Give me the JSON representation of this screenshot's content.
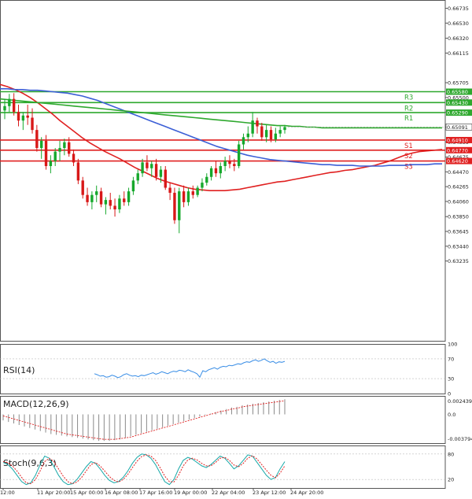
{
  "chart_data": [
    {
      "type": "candlestick",
      "panel": "price",
      "title": "",
      "ylim": [
        0.6213,
        0.6685
      ],
      "y_ticks": [
        "0.66735",
        "0.66530",
        "0.66320",
        "0.66115",
        "0.65705",
        "0.65500",
        "0.65295",
        "0.65090",
        "0.64885",
        "0.64675",
        "0.64470",
        "0.64265",
        "0.64060",
        "0.63850",
        "0.63645",
        "0.63440",
        "0.63235"
      ],
      "x_tick_labels": [
        "12:00",
        "11 Apr 20:00",
        "15 Apr 00:00",
        "16 Apr 08:00",
        "17 Apr 16:00",
        "19 Apr 00:00",
        "22 Apr 04:00",
        "23 Apr 12:00",
        "24 Apr 20:00"
      ],
      "current_price": "0.65091",
      "levels": [
        {
          "name": "R3",
          "value": 0.6558,
          "label": "0.65580",
          "color": "#2ea82e"
        },
        {
          "name": "R2",
          "value": 0.6543,
          "label": "0.65430",
          "color": "#2ea82e"
        },
        {
          "name": "R1",
          "value": 0.6529,
          "label": "0.65290",
          "color": "#2ea82e"
        },
        {
          "name": "S1",
          "value": 0.6491,
          "label": "0.64910",
          "color": "#e02020"
        },
        {
          "name": "S2",
          "value": 0.6477,
          "label": "0.64770",
          "color": "#e02020"
        },
        {
          "name": "S3",
          "value": 0.6462,
          "label": "0.64620",
          "color": "#e02020"
        }
      ],
      "candles": [
        [
          0.6532,
          0.6548,
          0.652,
          0.6538
        ],
        [
          0.6538,
          0.6555,
          0.653,
          0.6548
        ],
        [
          0.6548,
          0.6556,
          0.6525,
          0.653
        ],
        [
          0.653,
          0.654,
          0.651,
          0.6518
        ],
        [
          0.6518,
          0.653,
          0.6505,
          0.6525
        ],
        [
          0.6525,
          0.654,
          0.6512,
          0.6522
        ],
        [
          0.6522,
          0.6535,
          0.65,
          0.6505
        ],
        [
          0.6505,
          0.6512,
          0.6475,
          0.648
        ],
        [
          0.648,
          0.6495,
          0.6465,
          0.649
        ],
        [
          0.649,
          0.6498,
          0.645,
          0.6455
        ],
        [
          0.6455,
          0.647,
          0.6445,
          0.6462
        ],
        [
          0.6462,
          0.648,
          0.6455,
          0.6475
        ],
        [
          0.6475,
          0.649,
          0.6462,
          0.648
        ],
        [
          0.648,
          0.6493,
          0.647,
          0.6488
        ],
        [
          0.6488,
          0.6495,
          0.6468,
          0.6472
        ],
        [
          0.6472,
          0.6478,
          0.6455,
          0.646
        ],
        [
          0.646,
          0.6465,
          0.643,
          0.6435
        ],
        [
          0.6435,
          0.644,
          0.641,
          0.6415
        ],
        [
          0.6415,
          0.6425,
          0.64,
          0.6405
        ],
        [
          0.6405,
          0.642,
          0.6395,
          0.6415
        ],
        [
          0.6415,
          0.6428,
          0.6405,
          0.642
        ],
        [
          0.642,
          0.6425,
          0.6398,
          0.6402
        ],
        [
          0.6402,
          0.6412,
          0.6388,
          0.6408
        ],
        [
          0.6408,
          0.6418,
          0.6395,
          0.64
        ],
        [
          0.64,
          0.641,
          0.6385,
          0.6395
        ],
        [
          0.6395,
          0.6415,
          0.639,
          0.641
        ],
        [
          0.641,
          0.642,
          0.64,
          0.6405
        ],
        [
          0.6405,
          0.6425,
          0.64,
          0.642
        ],
        [
          0.642,
          0.644,
          0.6415,
          0.6435
        ],
        [
          0.6435,
          0.645,
          0.643,
          0.6445
        ],
        [
          0.6445,
          0.6465,
          0.644,
          0.646
        ],
        [
          0.646,
          0.647,
          0.6448,
          0.6452
        ],
        [
          0.6452,
          0.6462,
          0.644,
          0.6458
        ],
        [
          0.6458,
          0.6465,
          0.6435,
          0.644
        ],
        [
          0.644,
          0.6455,
          0.6432,
          0.645
        ],
        [
          0.645,
          0.6455,
          0.6422,
          0.6425
        ],
        [
          0.6425,
          0.6432,
          0.6408,
          0.6418
        ],
        [
          0.6418,
          0.6425,
          0.6375,
          0.638
        ],
        [
          0.638,
          0.6425,
          0.6362,
          0.642
        ],
        [
          0.642,
          0.6428,
          0.6398,
          0.6405
        ],
        [
          0.6405,
          0.6425,
          0.64,
          0.642
        ],
        [
          0.642,
          0.6428,
          0.641,
          0.6415
        ],
        [
          0.6415,
          0.6428,
          0.6412,
          0.6425
        ],
        [
          0.6425,
          0.6438,
          0.642,
          0.6432
        ],
        [
          0.6432,
          0.6445,
          0.6428,
          0.644
        ],
        [
          0.644,
          0.6455,
          0.6435,
          0.6452
        ],
        [
          0.6452,
          0.6462,
          0.644,
          0.6445
        ],
        [
          0.6445,
          0.646,
          0.6438,
          0.6455
        ],
        [
          0.6455,
          0.6468,
          0.6448,
          0.6462
        ],
        [
          0.6462,
          0.647,
          0.6452,
          0.6458
        ],
        [
          0.6458,
          0.6465,
          0.6448,
          0.6455
        ],
        [
          0.6455,
          0.649,
          0.6452,
          0.6485
        ],
        [
          0.6485,
          0.65,
          0.6478,
          0.6495
        ],
        [
          0.6495,
          0.651,
          0.6488,
          0.65
        ],
        [
          0.65,
          0.653,
          0.6495,
          0.6518
        ],
        [
          0.6518,
          0.6522,
          0.65,
          0.651
        ],
        [
          0.651,
          0.6515,
          0.649,
          0.6495
        ],
        [
          0.6495,
          0.6512,
          0.6488,
          0.6505
        ],
        [
          0.6505,
          0.651,
          0.6488,
          0.6492
        ],
        [
          0.6492,
          0.6508,
          0.6488,
          0.65
        ],
        [
          0.65,
          0.651,
          0.6495,
          0.6505
        ],
        [
          0.6505,
          0.6512,
          0.65,
          0.6509
        ]
      ],
      "moving_averages": [
        {
          "color": "#e02020",
          "values": [
            0.6568,
            0.6565,
            0.6561,
            0.6556,
            0.655,
            0.6543,
            0.6535,
            0.6527,
            0.6518,
            0.651,
            0.6502,
            0.6494,
            0.6487,
            0.6481,
            0.6475,
            0.647,
            0.6465,
            0.6459,
            0.6453,
            0.6448,
            0.6443,
            0.6438,
            0.6434,
            0.6431,
            0.6428,
            0.6425,
            0.6423,
            0.6422,
            0.6421,
            0.6421,
            0.6421,
            0.6422,
            0.6423,
            0.6425,
            0.6427,
            0.6429,
            0.6431,
            0.6433,
            0.6434,
            0.6436,
            0.6438,
            0.644,
            0.6442,
            0.6444,
            0.6446,
            0.6447,
            0.6449,
            0.645,
            0.6452,
            0.6454,
            0.6456,
            0.6459,
            0.6462,
            0.6466,
            0.647,
            0.6473,
            0.6475,
            0.6476,
            0.6477,
            0.6478
          ]
        },
        {
          "color": "#3c5fd6",
          "values": [
            0.6562,
            0.6562,
            0.6561,
            0.6561,
            0.656,
            0.656,
            0.6559,
            0.6558,
            0.6557,
            0.6556,
            0.6554,
            0.6552,
            0.6549,
            0.6546,
            0.6542,
            0.6538,
            0.6534,
            0.653,
            0.6526,
            0.6522,
            0.6518,
            0.6514,
            0.651,
            0.6506,
            0.6502,
            0.6498,
            0.6494,
            0.649,
            0.6486,
            0.6482,
            0.6479,
            0.6476,
            0.6473,
            0.647,
            0.6468,
            0.6466,
            0.6464,
            0.6463,
            0.6462,
            0.6461,
            0.646,
            0.6459,
            0.6458,
            0.6457,
            0.6457,
            0.6456,
            0.6456,
            0.6456,
            0.6455,
            0.6455,
            0.6455,
            0.6455,
            0.6456,
            0.6456,
            0.6456,
            0.6457,
            0.6457,
            0.6457,
            0.6458,
            0.6458
          ]
        },
        {
          "color": "#2ea82e",
          "values": [
            0.6548,
            0.6547,
            0.6546,
            0.6545,
            0.6544,
            0.6543,
            0.6542,
            0.6541,
            0.654,
            0.6539,
            0.6538,
            0.6537,
            0.6536,
            0.6535,
            0.6534,
            0.6533,
            0.6532,
            0.6531,
            0.653,
            0.6529,
            0.6528,
            0.6527,
            0.6526,
            0.6525,
            0.6524,
            0.6523,
            0.6522,
            0.6521,
            0.652,
            0.6519,
            0.6518,
            0.6517,
            0.6516,
            0.6515,
            0.6514,
            0.6513,
            0.6512,
            0.6511,
            0.6511,
            0.651,
            0.651,
            0.6509,
            0.6509,
            0.6508,
            0.6508,
            0.6508,
            0.6508,
            0.6508,
            0.6508,
            0.6508,
            0.6508,
            0.6508,
            0.6508,
            0.6508,
            0.6508,
            0.6508,
            0.6508,
            0.6508,
            0.6508,
            0.6508
          ]
        }
      ]
    },
    {
      "type": "line",
      "panel": "rsi",
      "title": "RSI(14)",
      "ylim": [
        0,
        100
      ],
      "y_ticks": [
        "100",
        "70",
        "30",
        "0"
      ],
      "series": [
        {
          "color": "#3a8ee6",
          "values": [
            40,
            38,
            35,
            36,
            33,
            34,
            37,
            35,
            32,
            34,
            38,
            40,
            37,
            35,
            36,
            34,
            37,
            36,
            38,
            40,
            42,
            39,
            41,
            44,
            42,
            40,
            43,
            45,
            44,
            47,
            46,
            44,
            48,
            45,
            43,
            40,
            33,
            46,
            44,
            48,
            50,
            52,
            49,
            53,
            55,
            54,
            57,
            56,
            58,
            60,
            59,
            62,
            64,
            63,
            66,
            68,
            65,
            67,
            70,
            66,
            63,
            65,
            61,
            64,
            63,
            65
          ]
        }
      ]
    },
    {
      "type": "bar",
      "panel": "macd",
      "title": "MACD(12,26,9)",
      "ylim": [
        -0.003794,
        0.002439
      ],
      "y_ticks": [
        "0.002439",
        "0.0",
        "-0.003794"
      ],
      "histogram": [
        -0.0008,
        -0.001,
        -0.0012,
        -0.0014,
        -0.0016,
        -0.0018,
        -0.002,
        -0.0022,
        -0.0024,
        -0.0026,
        -0.0027,
        -0.0028,
        -0.0029,
        -0.003,
        -0.0031,
        -0.0032,
        -0.0033,
        -0.0034,
        -0.0035,
        -0.0035,
        -0.0035,
        -0.0034,
        -0.0033,
        -0.0031,
        -0.0029,
        -0.0027,
        -0.0025,
        -0.0023,
        -0.0021,
        -0.0019,
        -0.0017,
        -0.0015,
        -0.0013,
        -0.0011,
        -0.0009,
        -0.0007,
        -0.0005,
        -0.0003,
        -0.0001,
        0.0001,
        0.0003,
        0.0005,
        0.0007,
        0.0009,
        0.001,
        0.0012,
        0.0013,
        0.0014,
        0.0015,
        0.0016,
        0.0017,
        0.0018,
        0.0019,
        0.002
      ],
      "signal": [
        -0.0002,
        -0.0004,
        -0.0006,
        -0.0008,
        -0.001,
        -0.0012,
        -0.0014,
        -0.0016,
        -0.0018,
        -0.002,
        -0.0022,
        -0.0024,
        -0.0026,
        -0.0027,
        -0.0028,
        -0.0029,
        -0.003,
        -0.0031,
        -0.0032,
        -0.0033,
        -0.0033,
        -0.0033,
        -0.0032,
        -0.0031,
        -0.003,
        -0.0028,
        -0.0026,
        -0.0024,
        -0.0022,
        -0.002,
        -0.0018,
        -0.0016,
        -0.0014,
        -0.0012,
        -0.001,
        -0.0008,
        -0.0006,
        -0.0004,
        -0.0002,
        0.0,
        0.0002,
        0.0004,
        0.0005,
        0.0007,
        0.0008,
        0.001,
        0.0011,
        0.0012,
        0.0013,
        0.0014,
        0.0015,
        0.0016,
        0.0017,
        0.0018
      ]
    },
    {
      "type": "line",
      "panel": "stoch",
      "title": "Stoch(9,6,3)",
      "ylim": [
        0,
        100
      ],
      "y_ticks": [
        "80",
        "20"
      ],
      "series": [
        {
          "color": "#17a8a8",
          "values": [
            60,
            55,
            45,
            30,
            15,
            8,
            12,
            30,
            55,
            75,
            70,
            50,
            30,
            15,
            8,
            10,
            20,
            35,
            50,
            62,
            58,
            45,
            30,
            18,
            12,
            15,
            25,
            40,
            58,
            72,
            80,
            78,
            70,
            55,
            35,
            15,
            8,
            20,
            45,
            65,
            72,
            68,
            60,
            52,
            48,
            55,
            65,
            75,
            70,
            58,
            45,
            52,
            65,
            78,
            75,
            60,
            45,
            30,
            20,
            25,
            45,
            62
          ]
        },
        {
          "color": "#e02020",
          "values": [
            62,
            60,
            52,
            40,
            25,
            12,
            10,
            20,
            40,
            62,
            70,
            62,
            45,
            28,
            15,
            10,
            14,
            25,
            40,
            55,
            60,
            52,
            40,
            27,
            18,
            14,
            20,
            32,
            48,
            63,
            74,
            78,
            75,
            65,
            48,
            28,
            15,
            14,
            30,
            52,
            66,
            70,
            66,
            58,
            52,
            52,
            60,
            70,
            72,
            65,
            54,
            50,
            58,
            70,
            76,
            68,
            55,
            42,
            30,
            24,
            35,
            52
          ]
        }
      ]
    }
  ]
}
